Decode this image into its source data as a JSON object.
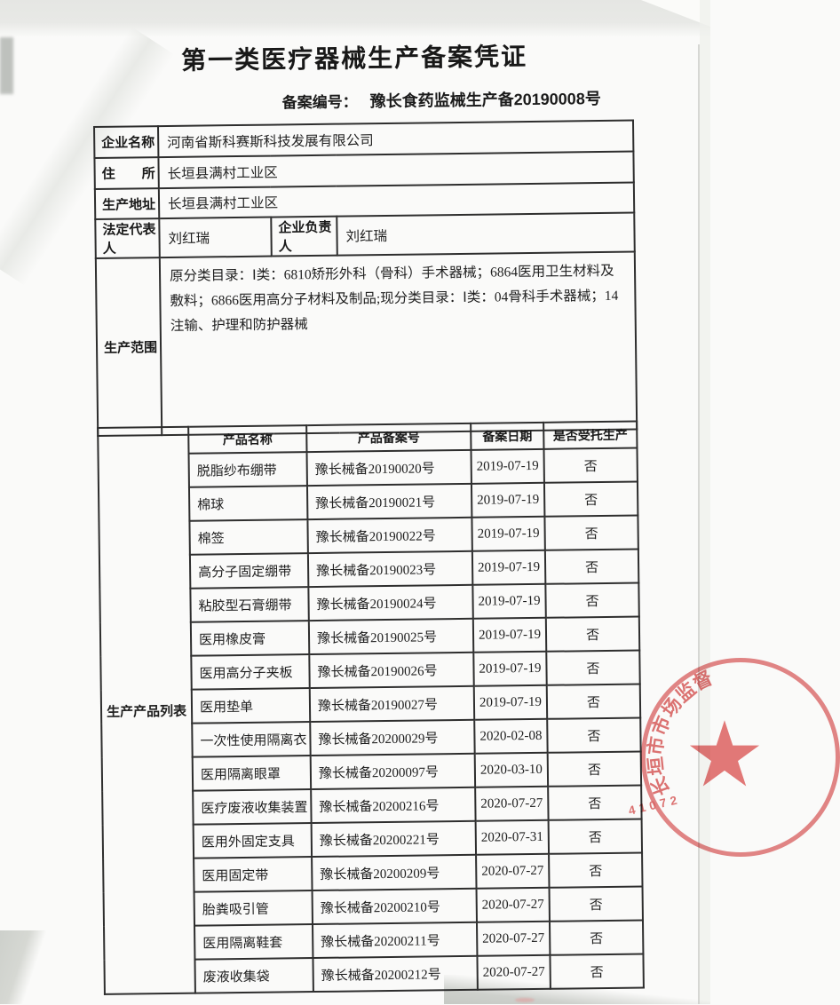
{
  "doc": {
    "title": "第一类医疗器械生产备案凭证",
    "filing_label": "备案编号：",
    "filing_no": "豫长食药监械生产备20190008号"
  },
  "fields": {
    "name": {
      "label": "企业名称",
      "value": "河南省斯科赛斯科技发展有限公司"
    },
    "residence": {
      "label": "住　　所",
      "value": "长垣县满村工业区"
    },
    "address": {
      "label": "生产地址",
      "value": "长垣县满村工业区"
    },
    "legal_rep": {
      "label": "法定代表人",
      "value": "刘红瑞"
    },
    "manager": {
      "label": "企业负责人",
      "value": "刘红瑞"
    },
    "scope": {
      "label": "生产范围",
      "value": "原分类目录：Ⅰ类：6810矫形外科（骨科）手术器械；6864医用卫生材料及敷料；6866医用高分子材料及制品;现分类目录：Ⅰ类：04骨科手术器械；14注输、护理和防护器械"
    }
  },
  "products": {
    "label": "生产产品列表",
    "headers": [
      "产品名称",
      "产品备案号",
      "备案日期",
      "是否受托生产"
    ],
    "rows": [
      {
        "name": "脱脂纱布绷带",
        "reg_no": "豫长械备20190020号",
        "date": "2019-07-19",
        "entrusted": "否"
      },
      {
        "name": "棉球",
        "reg_no": "豫长械备20190021号",
        "date": "2019-07-19",
        "entrusted": "否"
      },
      {
        "name": "棉签",
        "reg_no": "豫长械备20190022号",
        "date": "2019-07-19",
        "entrusted": "否"
      },
      {
        "name": "高分子固定绷带",
        "reg_no": "豫长械备20190023号",
        "date": "2019-07-19",
        "entrusted": "否"
      },
      {
        "name": "粘胶型石膏绷带",
        "reg_no": "豫长械备20190024号",
        "date": "2019-07-19",
        "entrusted": "否"
      },
      {
        "name": "医用橡皮膏",
        "reg_no": "豫长械备20190025号",
        "date": "2019-07-19",
        "entrusted": "否"
      },
      {
        "name": "医用高分子夹板",
        "reg_no": "豫长械备20190026号",
        "date": "2019-07-19",
        "entrusted": "否"
      },
      {
        "name": "医用垫单",
        "reg_no": "豫长械备20190027号",
        "date": "2019-07-19",
        "entrusted": "否"
      },
      {
        "name": "一次性使用隔离衣",
        "reg_no": "豫长械备20200029号",
        "date": "2020-02-08",
        "entrusted": "否"
      },
      {
        "name": "医用隔离眼罩",
        "reg_no": "豫长械备20200097号",
        "date": "2020-03-10",
        "entrusted": "否"
      },
      {
        "name": "医疗废液收集装置",
        "reg_no": "豫长械备20200216号",
        "date": "2020-07-27",
        "entrusted": "否"
      },
      {
        "name": "医用外固定支具",
        "reg_no": "豫长械备20200221号",
        "date": "2020-07-31",
        "entrusted": "否"
      },
      {
        "name": "医用固定带",
        "reg_no": "豫长械备20200209号",
        "date": "2020-07-27",
        "entrusted": "否"
      },
      {
        "name": "胎粪吸引管",
        "reg_no": "豫长械备20200210号",
        "date": "2020-07-27",
        "entrusted": "否"
      },
      {
        "name": "医用隔离鞋套",
        "reg_no": "豫长械备20200211号",
        "date": "2020-07-27",
        "entrusted": "否"
      },
      {
        "name": "废液收集袋",
        "reg_no": "豫长械备20200212号",
        "date": "2020-07-27",
        "entrusted": "否"
      }
    ]
  },
  "stamp": {
    "chars": [
      "长",
      "垣",
      "市",
      "市",
      "场",
      "监",
      "督"
    ],
    "serial": "41072",
    "star": "★",
    "color": "#db5858"
  }
}
